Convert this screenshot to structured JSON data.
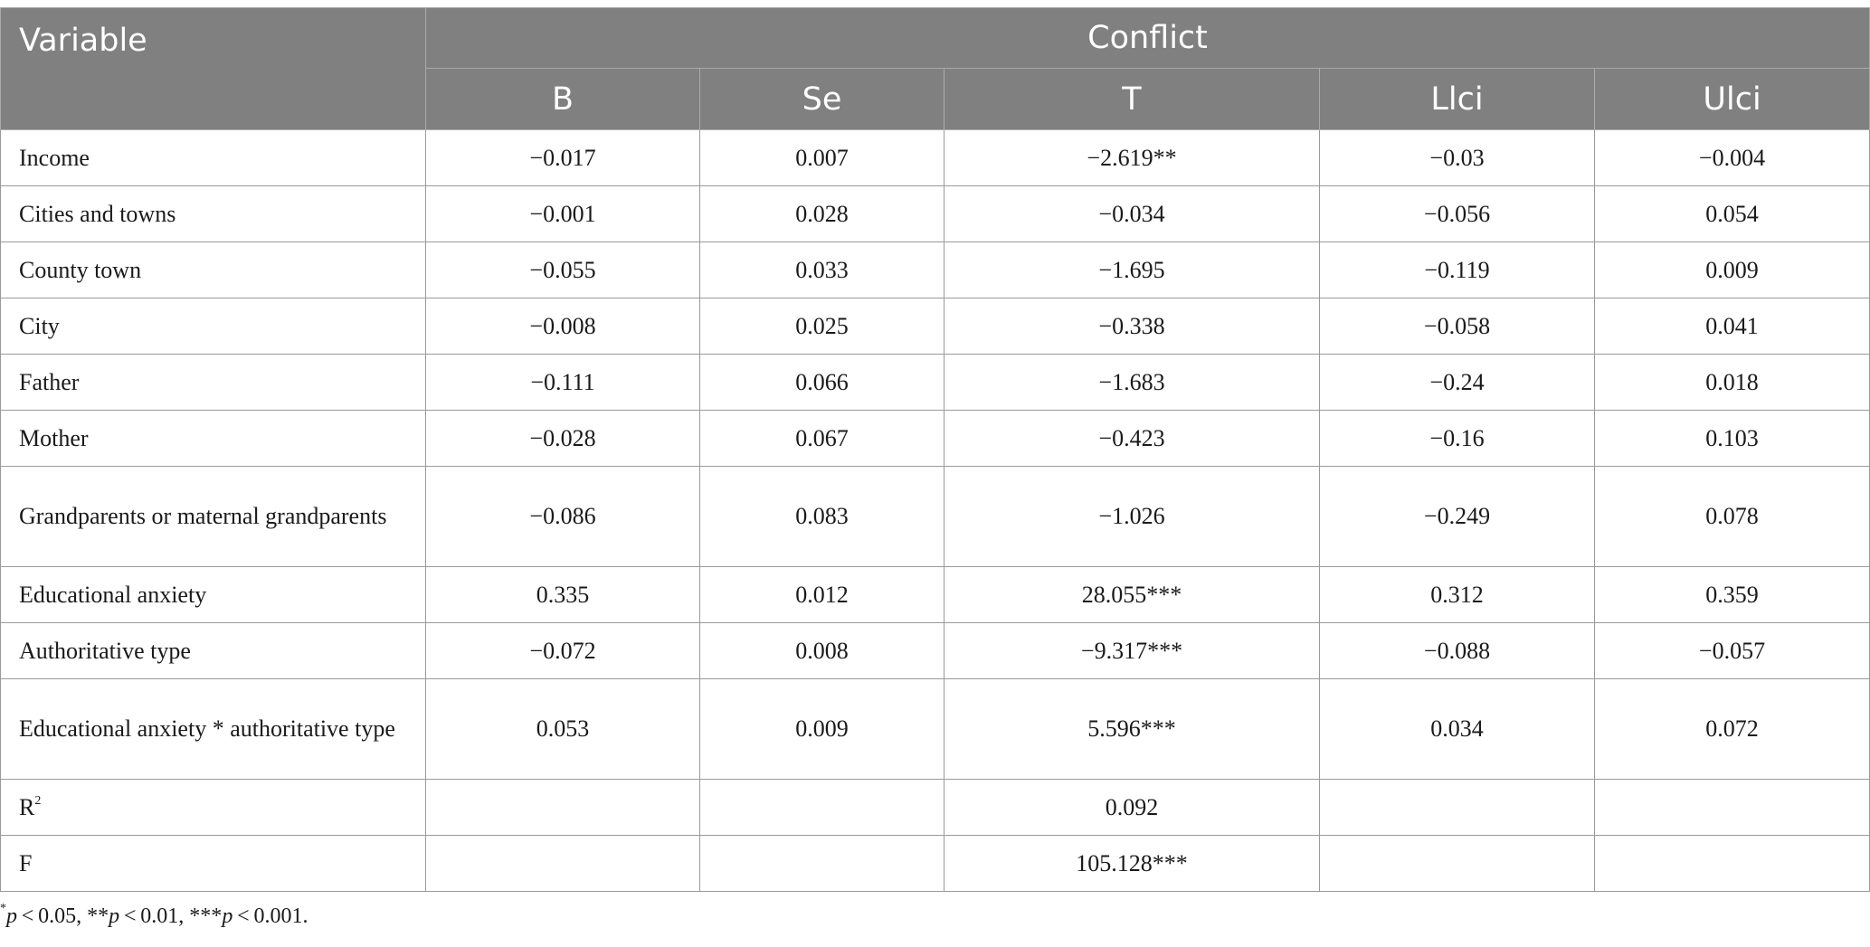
{
  "table": {
    "header": {
      "variable": "Variable",
      "group": "Conflict",
      "columns": [
        "B",
        "Se",
        "T",
        "Llci",
        "Ulci"
      ]
    },
    "rows": [
      {
        "label": "Income",
        "values": [
          "−0.017",
          "0.007",
          "−2.619**",
          "−0.03",
          "−0.004"
        ]
      },
      {
        "label": "Cities and towns",
        "values": [
          "−0.001",
          "0.028",
          "−0.034",
          "−0.056",
          "0.054"
        ]
      },
      {
        "label": "County town",
        "values": [
          "−0.055",
          "0.033",
          "−1.695",
          "−0.119",
          "0.009"
        ]
      },
      {
        "label": "City",
        "values": [
          "−0.008",
          "0.025",
          "−0.338",
          "−0.058",
          "0.041"
        ]
      },
      {
        "label": "Father",
        "values": [
          "−0.111",
          "0.066",
          "−1.683",
          "−0.24",
          "0.018"
        ]
      },
      {
        "label": "Mother",
        "values": [
          "−0.028",
          "0.067",
          "−0.423",
          "−0.16",
          "0.103"
        ]
      },
      {
        "label": "Grandparents or maternal grandparents",
        "values": [
          "−0.086",
          "0.083",
          "−1.026",
          "−0.249",
          "0.078"
        ]
      },
      {
        "label": "Educational anxiety",
        "values": [
          "0.335",
          "0.012",
          "28.055***",
          "0.312",
          "0.359"
        ]
      },
      {
        "label": "Authoritative type",
        "values": [
          "−0.072",
          "0.008",
          "−9.317***",
          "−0.088",
          "−0.057"
        ]
      },
      {
        "label": "Educational anxiety * authoritative type",
        "values": [
          "0.053",
          "0.009",
          "5.596***",
          "0.034",
          "0.072"
        ]
      }
    ],
    "r2": {
      "label_base": "R",
      "label_sup": "2",
      "value": "0.092"
    },
    "f": {
      "label": "F",
      "value": "105.128***"
    }
  },
  "footnote": {
    "s1": "*",
    "p1": "p",
    "t1": " < 0.05, **",
    "p2": "p",
    "t2": " < 0.01, ***",
    "p3": "p",
    "t3": " < 0.001."
  },
  "colors": {
    "header_bg": "#7f807f",
    "header_text": "#ffffff",
    "border": "#9a9a9a"
  }
}
